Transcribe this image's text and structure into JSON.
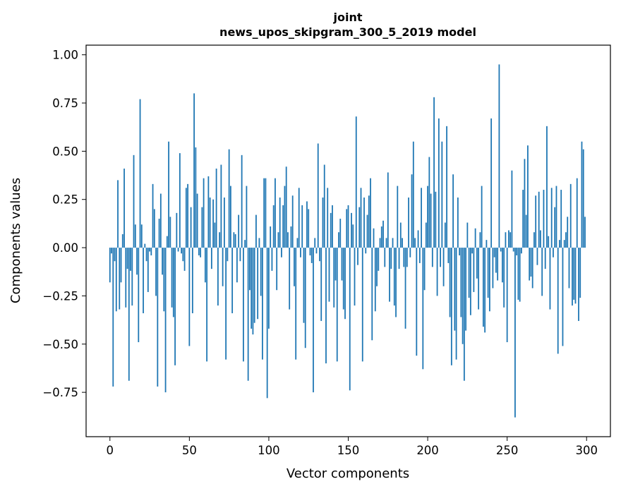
{
  "chart_data": {
    "type": "bar",
    "title_lines": [
      "joint",
      "news_upos_skipgram_300_5_2019 model"
    ],
    "xlabel": "Vector components",
    "ylabel": "Components values",
    "xlim": [
      -15,
      315
    ],
    "ylim": [
      -0.98,
      1.05
    ],
    "x_ticks": [
      0,
      50,
      100,
      150,
      200,
      250,
      300
    ],
    "x_tick_labels": [
      "0",
      "50",
      "100",
      "150",
      "200",
      "250",
      "300"
    ],
    "y_ticks": [
      -0.75,
      -0.5,
      -0.25,
      0.0,
      0.25,
      0.5,
      0.75,
      1.0
    ],
    "y_tick_labels": [
      "−0.75",
      "−0.50",
      "−0.25",
      "0.00",
      "0.25",
      "0.50",
      "0.75",
      "1.00"
    ],
    "bar_color": "#1f77b4",
    "grid": false,
    "values": [
      -0.18,
      -0.03,
      -0.72,
      -0.07,
      -0.33,
      0.35,
      -0.32,
      -0.18,
      0.07,
      0.41,
      -0.31,
      -0.11,
      -0.69,
      -0.12,
      -0.3,
      0.48,
      0.12,
      -0.14,
      -0.49,
      0.77,
      0.12,
      -0.34,
      0.02,
      -0.07,
      -0.23,
      -0.02,
      -0.04,
      0.33,
      0.2,
      -0.25,
      -0.72,
      0.15,
      0.28,
      -0.14,
      -0.33,
      -0.75,
      0.06,
      0.55,
      0.16,
      -0.31,
      -0.36,
      -0.61,
      0.18,
      -0.02,
      0.49,
      -0.03,
      -0.07,
      -0.12,
      0.31,
      0.33,
      -0.51,
      0.21,
      -0.34,
      0.8,
      0.52,
      0.28,
      -0.04,
      -0.05,
      0.21,
      0.36,
      -0.18,
      -0.59,
      0.37,
      0.26,
      -0.11,
      0.25,
      0.13,
      0.41,
      -0.3,
      0.08,
      0.43,
      -0.2,
      0.26,
      -0.58,
      -0.07,
      0.51,
      0.32,
      -0.34,
      0.08,
      0.07,
      -0.18,
      0.17,
      -0.07,
      0.48,
      -0.59,
      0.04,
      0.32,
      -0.69,
      -0.22,
      -0.42,
      -0.45,
      -0.39,
      0.17,
      -0.37,
      0.05,
      -0.25,
      -0.58,
      0.36,
      0.36,
      -0.78,
      -0.42,
      0.11,
      -0.12,
      0.22,
      0.36,
      -0.22,
      0.08,
      0.26,
      -0.05,
      0.22,
      0.32,
      0.42,
      0.08,
      -0.32,
      0.11,
      0.27,
      -0.2,
      -0.58,
      0.05,
      0.31,
      -0.05,
      0.22,
      -0.39,
      -0.52,
      0.24,
      0.2,
      -0.04,
      -0.08,
      -0.75,
      0.05,
      -0.03,
      0.54,
      -0.07,
      -0.38,
      0.26,
      0.43,
      -0.6,
      0.31,
      -0.28,
      0.18,
      0.22,
      -0.31,
      -0.17,
      -0.59,
      0.08,
      0.15,
      -0.17,
      -0.32,
      -0.37,
      0.2,
      0.22,
      -0.74,
      0.18,
      0.12,
      -0.3,
      0.68,
      -0.09,
      0.21,
      0.31,
      -0.59,
      0.26,
      -0.03,
      0.17,
      0.27,
      0.36,
      -0.48,
      0.1,
      -0.33,
      -0.2,
      -0.12,
      0.05,
      0.11,
      0.14,
      -0.1,
      0.05,
      0.39,
      -0.28,
      -0.11,
      0.05,
      -0.3,
      -0.36,
      0.32,
      -0.11,
      0.13,
      0.05,
      -0.1,
      -0.42,
      -0.1,
      0.26,
      -0.05,
      0.38,
      0.55,
      0.05,
      -0.56,
      0.09,
      -0.08,
      0.31,
      -0.63,
      -0.22,
      0.13,
      0.32,
      0.47,
      0.28,
      -0.1,
      0.78,
      0.29,
      -0.25,
      0.67,
      -0.1,
      0.55,
      -0.2,
      0.13,
      0.63,
      -0.08,
      -0.36,
      -0.61,
      0.38,
      -0.43,
      -0.58,
      0.26,
      -0.04,
      -0.36,
      -0.5,
      -0.69,
      -0.43,
      0.13,
      -0.26,
      -0.35,
      -0.03,
      -0.23,
      0.1,
      -0.16,
      -0.32,
      0.08,
      0.32,
      -0.41,
      -0.44,
      0.04,
      -0.26,
      -0.33,
      0.67,
      -0.21,
      -0.05,
      -0.13,
      -0.17,
      0.95,
      -0.02,
      -0.18,
      -0.31,
      0.08,
      -0.49,
      0.09,
      0.08,
      0.4,
      -0.02,
      -0.88,
      -0.04,
      -0.27,
      -0.28,
      -0.03,
      0.3,
      0.46,
      0.17,
      0.53,
      -0.17,
      -0.15,
      -0.21,
      0.08,
      0.27,
      -0.09,
      0.29,
      0.09,
      -0.25,
      0.3,
      -0.11,
      0.63,
      0.06,
      -0.32,
      0.31,
      -0.05,
      0.21,
      0.32,
      -0.55,
      0.04,
      0.3,
      -0.51,
      0.04,
      0.08,
      0.16,
      -0.21,
      0.33,
      -0.3,
      -0.27,
      -0.29,
      0.36,
      -0.38,
      -0.26,
      0.55,
      0.51,
      0.16
    ]
  }
}
